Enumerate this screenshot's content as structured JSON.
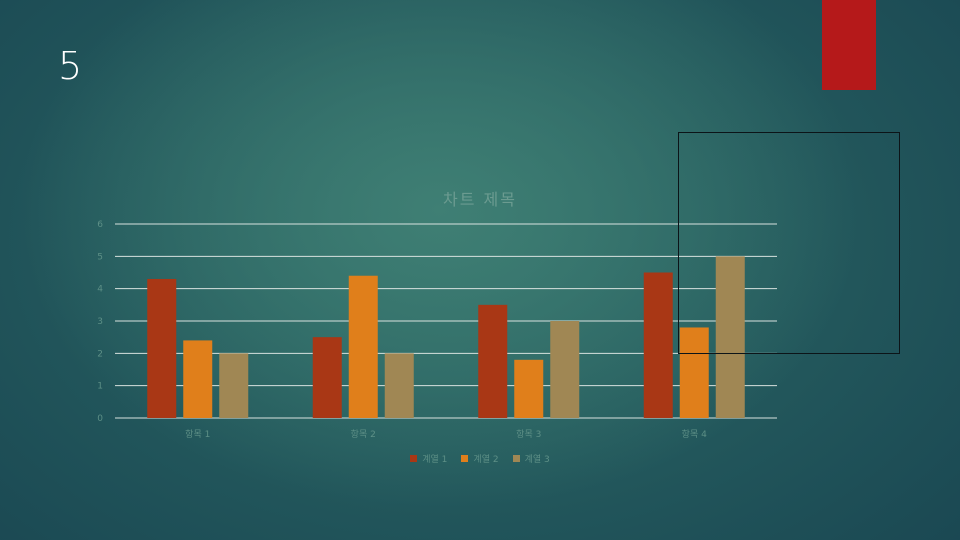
{
  "slide": {
    "number": "5"
  },
  "colors": {
    "red_tab": "#b5191a",
    "series": [
      "#a93715",
      "#e07f1b",
      "#a08754"
    ],
    "gridline": "#d8e2df",
    "axis_text": "#5d8f86"
  },
  "chart_data": {
    "type": "bar",
    "title": "차트 제목",
    "categories": [
      "항목 1",
      "항목 2",
      "항목 3",
      "항목 4"
    ],
    "series": [
      {
        "name": "계열 1",
        "values": [
          4.3,
          2.5,
          3.5,
          4.5
        ]
      },
      {
        "name": "계열 2",
        "values": [
          2.4,
          4.4,
          1.8,
          2.8
        ]
      },
      {
        "name": "계열 3",
        "values": [
          2,
          2,
          3,
          5
        ]
      }
    ],
    "ylim": [
      0,
      6
    ],
    "yticks": [
      0,
      1,
      2,
      3,
      4,
      5,
      6
    ],
    "legend": "bottom",
    "grid": true
  }
}
